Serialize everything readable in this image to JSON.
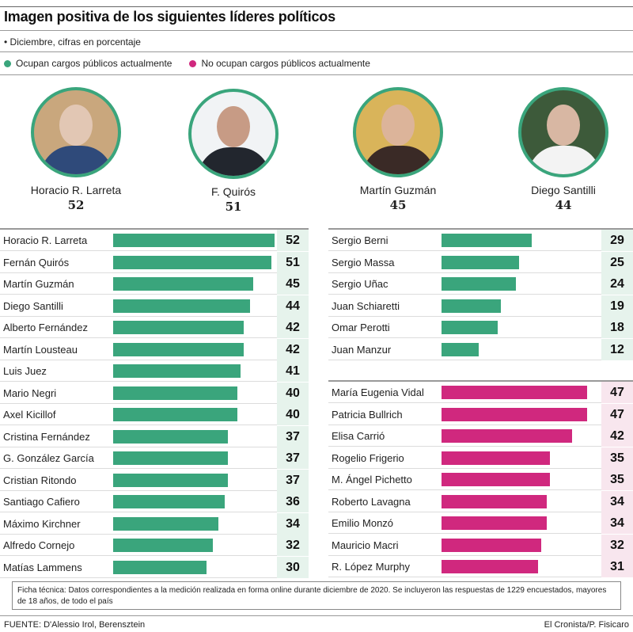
{
  "header": {
    "title": "Imagen positiva de los siguientes líderes políticos",
    "subtitle": "• Diciembre, cifras en porcentaje"
  },
  "legend": [
    {
      "label": "Ocupan cargos públicos actualmente",
      "color": "#3aa57c"
    },
    {
      "label": "No ocupan cargos públicos actualmente",
      "color": "#d0287e"
    }
  ],
  "highlights": [
    {
      "name": "Horacio R. Larreta",
      "value": "52"
    },
    {
      "name": "F. Quirós",
      "value": "51"
    },
    {
      "name": "Martín Guzmán",
      "value": "45"
    },
    {
      "name": "Diego Santilli",
      "value": "44"
    }
  ],
  "colors": {
    "green": "#3aa57c",
    "pink": "#d0287e",
    "green_cell": "#e6f3ec",
    "pink_cell": "#f8e6ee",
    "ring": "#3aa57c"
  },
  "chart_data": [
    {
      "type": "bar",
      "orientation": "horizontal",
      "title": "Ocupan cargos públicos actualmente (columna izquierda)",
      "xlabel": "",
      "ylabel": "",
      "xlim": [
        0,
        52
      ],
      "grid": false,
      "color": "#3aa57c",
      "categories": [
        "Horacio R. Larreta",
        "Fernán Quirós",
        "Martín Guzmán",
        "Diego Santilli",
        "Alberto Fernández",
        "Martín Lousteau",
        "Luis Juez",
        "Mario Negri",
        "Axel Kicillof",
        "Cristina Fernández",
        "G. González García",
        "Cristian Ritondo",
        "Santiago Cafiero",
        "Máximo Kirchner",
        "Alfredo Cornejo",
        "Matías Lammens"
      ],
      "values": [
        52,
        51,
        45,
        44,
        42,
        42,
        41,
        40,
        40,
        37,
        37,
        37,
        36,
        34,
        32,
        30
      ]
    },
    {
      "type": "bar",
      "orientation": "horizontal",
      "title": "Ocupan cargos públicos actualmente (columna derecha)",
      "xlabel": "",
      "ylabel": "",
      "xlim": [
        0,
        52
      ],
      "grid": false,
      "color": "#3aa57c",
      "categories": [
        "Sergio Berni",
        "Sergio Massa",
        "Sergio Uñac",
        "Juan Schiaretti",
        "Omar Perotti",
        "Juan Manzur"
      ],
      "values": [
        29,
        25,
        24,
        19,
        18,
        12
      ]
    },
    {
      "type": "bar",
      "orientation": "horizontal",
      "title": "No ocupan cargos públicos actualmente",
      "xlabel": "",
      "ylabel": "",
      "xlim": [
        0,
        52
      ],
      "grid": false,
      "color": "#d0287e",
      "categories": [
        "María Eugenia Vidal",
        "Patricia Bullrich",
        "Elisa Carrió",
        "Rogelio Frigerio",
        "M. Ángel Pichetto",
        "Roberto Lavagna",
        "Emilio Monzó",
        "Mauricio Macri",
        "R. López Murphy"
      ],
      "values": [
        47,
        47,
        42,
        35,
        35,
        34,
        34,
        32,
        31
      ]
    }
  ],
  "footer": {
    "ficha": "Ficha técnica: Datos correspondientes a la medición realizada en forma online durante diciembre de 2020. Se incluyeron las respuestas de 1229 encuestados, mayores de 18 años, de todo el país",
    "source": "FUENTE: D'Alessio Irol, Berensztein",
    "credit": "El Cronista/P. Fisicaro"
  }
}
